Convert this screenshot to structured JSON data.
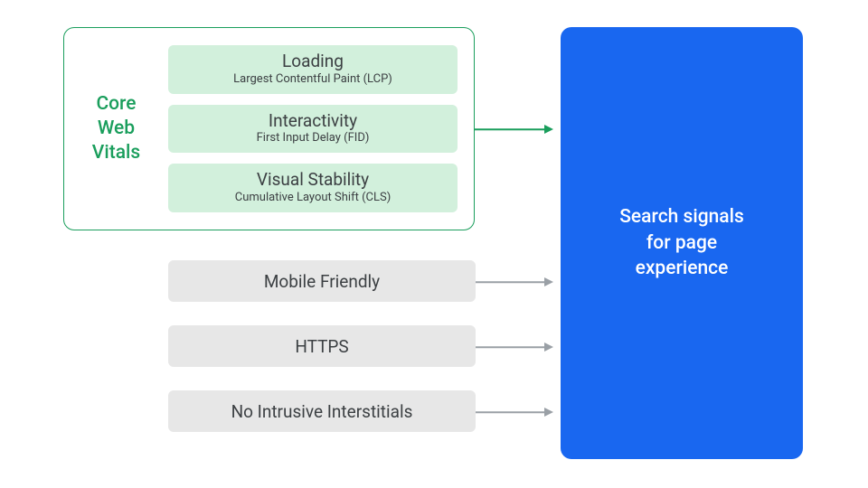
{
  "colors": {
    "cwv_border": "#1a9e5c",
    "metric_bg": "#d2f0dc",
    "signal_bg": "#e7e7e7",
    "target_bg": "#1967f0",
    "text": "#3c4043",
    "arrow_gray": "#9aa0a6"
  },
  "cwv_label": "Core\nWeb\nVitals",
  "metrics": [
    {
      "title": "Loading",
      "sub": "Largest Contentful Paint (LCP)"
    },
    {
      "title": "Interactivity",
      "sub": "First Input Delay (FID)"
    },
    {
      "title": "Visual Stability",
      "sub": "Cumulative Layout Shift (CLS)"
    }
  ],
  "signals": [
    "Mobile Friendly",
    "HTTPS",
    "No Intrusive Interstitials"
  ],
  "target_text": "Search signals\nfor page\nexperience"
}
